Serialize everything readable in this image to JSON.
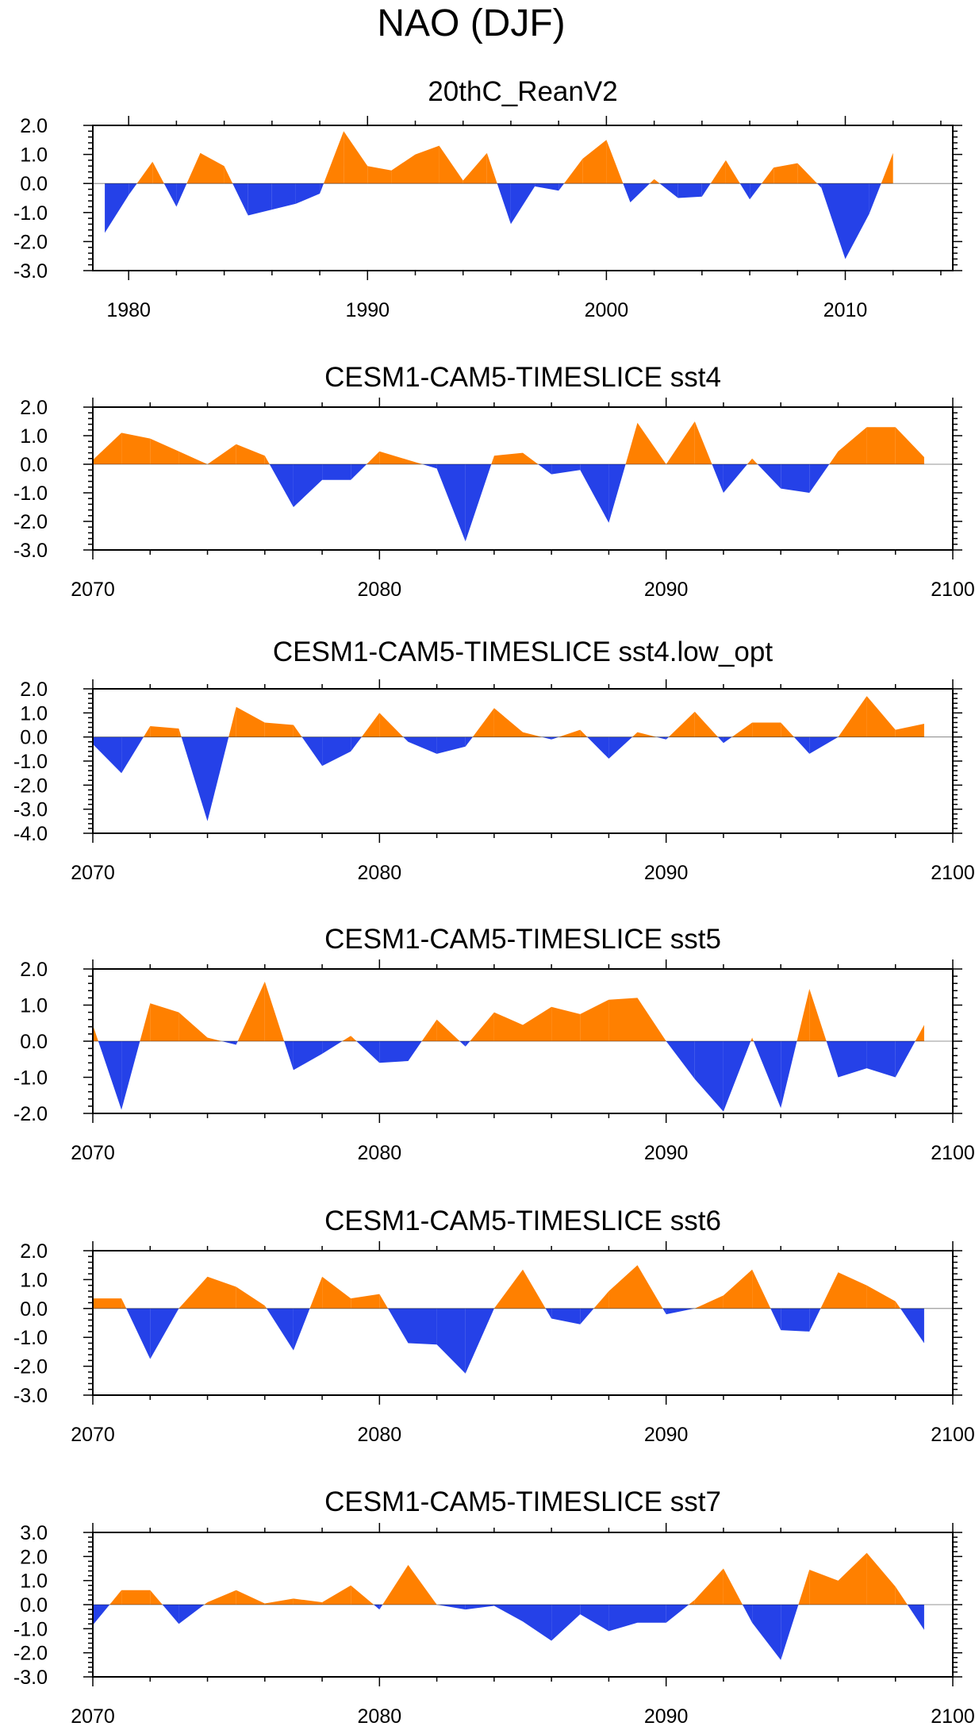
{
  "figure_title": "NAO (DJF)",
  "colors": {
    "positive": "#ff8000",
    "negative": "#2541e8"
  },
  "chart_data": [
    {
      "type": "area",
      "title": "20thC_ReanV2",
      "x": [
        1979,
        1980,
        1981,
        1982,
        1983,
        1984,
        1985,
        1986,
        1987,
        1988,
        1989,
        1990,
        1991,
        1992,
        1993,
        1994,
        1995,
        1996,
        1997,
        1998,
        1999,
        2000,
        2001,
        2002,
        2003,
        2004,
        2005,
        2006,
        2007,
        2008,
        2009,
        2010,
        2011,
        2012
      ],
      "values": [
        -1.7,
        -0.4,
        0.75,
        -0.8,
        1.05,
        0.6,
        -1.1,
        -0.9,
        -0.7,
        -0.35,
        1.8,
        0.6,
        0.45,
        1.0,
        1.3,
        0.1,
        1.05,
        -1.4,
        -0.1,
        -0.25,
        0.85,
        1.5,
        -0.65,
        0.15,
        -0.5,
        -0.45,
        0.8,
        -0.55,
        0.55,
        0.7,
        -0.15,
        -2.6,
        -1.05,
        1.05
      ],
      "xlim": [
        1978.5,
        2014.5
      ],
      "ylim": [
        -3.0,
        2.0
      ],
      "xticks": [
        1980,
        1990,
        2000,
        2010
      ],
      "xtick_labels": [
        "1980",
        "1990",
        "2000",
        "2010"
      ],
      "yticks": [
        2,
        1,
        0,
        -1,
        -2,
        -3
      ],
      "ytick_labels": [
        "2.0",
        "1.0",
        "0.0",
        "-1.0",
        "-2.0",
        "-3.0"
      ]
    },
    {
      "type": "area",
      "title": "CESM1-CAM5-TIMESLICE sst4",
      "x": [
        2070,
        2071,
        2072,
        2073,
        2074,
        2075,
        2076,
        2077,
        2078,
        2079,
        2080,
        2081,
        2082,
        2083,
        2084,
        2085,
        2086,
        2087,
        2088,
        2089,
        2090,
        2091,
        2092,
        2093,
        2094,
        2095,
        2096,
        2097,
        2098,
        2099
      ],
      "values": [
        0.15,
        1.1,
        0.9,
        0.45,
        0.0,
        0.7,
        0.3,
        -1.5,
        -0.55,
        -0.55,
        0.45,
        0.15,
        -0.15,
        -2.7,
        0.3,
        0.4,
        -0.35,
        -0.2,
        -2.05,
        1.45,
        0.0,
        1.5,
        -1.0,
        0.2,
        -0.85,
        -1.0,
        0.45,
        1.3,
        1.3,
        0.25
      ],
      "xlim": [
        2070,
        2100
      ],
      "ylim": [
        -3.0,
        2.0
      ],
      "xticks": [
        2070,
        2080,
        2090,
        2100
      ],
      "xtick_labels": [
        "2070",
        "2080",
        "2090",
        "2100"
      ],
      "yticks": [
        2,
        1,
        0,
        -1,
        -2,
        -3
      ],
      "ytick_labels": [
        "2.0",
        "1.0",
        "0.0",
        "-1.0",
        "-2.0",
        "-3.0"
      ]
    },
    {
      "type": "area",
      "title": "CESM1-CAM5-TIMESLICE sst4.low_opt",
      "x": [
        2070,
        2071,
        2072,
        2073,
        2074,
        2075,
        2076,
        2077,
        2078,
        2079,
        2080,
        2081,
        2082,
        2083,
        2084,
        2085,
        2086,
        2087,
        2088,
        2089,
        2090,
        2091,
        2092,
        2093,
        2094,
        2095,
        2096,
        2097,
        2098,
        2099
      ],
      "values": [
        -0.3,
        -1.5,
        0.45,
        0.35,
        -3.5,
        1.25,
        0.6,
        0.5,
        -1.2,
        -0.6,
        1.0,
        -0.2,
        -0.7,
        -0.4,
        1.2,
        0.2,
        -0.1,
        0.3,
        -0.9,
        0.2,
        -0.1,
        1.05,
        -0.25,
        0.6,
        0.6,
        -0.7,
        0.0,
        1.7,
        0.3,
        0.55
      ],
      "xlim": [
        2070,
        2100
      ],
      "ylim": [
        -4.0,
        2.0
      ],
      "xticks": [
        2070,
        2080,
        2090,
        2100
      ],
      "xtick_labels": [
        "2070",
        "2080",
        "2090",
        "2100"
      ],
      "yticks": [
        2,
        1,
        0,
        -1,
        -2,
        -3,
        -4
      ],
      "ytick_labels": [
        "2.0",
        "1.0",
        "0.0",
        "-1.0",
        "-2.0",
        "-3.0",
        "-4.0"
      ]
    },
    {
      "type": "area",
      "title": "CESM1-CAM5-TIMESLICE sst5",
      "x": [
        2070,
        2071,
        2072,
        2073,
        2074,
        2075,
        2076,
        2077,
        2078,
        2079,
        2080,
        2081,
        2082,
        2083,
        2084,
        2085,
        2086,
        2087,
        2088,
        2089,
        2090,
        2091,
        2092,
        2093,
        2094,
        2095,
        2096,
        2097,
        2098,
        2099
      ],
      "values": [
        0.45,
        -1.9,
        1.05,
        0.8,
        0.1,
        -0.1,
        1.65,
        -0.8,
        -0.35,
        0.15,
        -0.6,
        -0.55,
        0.6,
        -0.15,
        0.8,
        0.45,
        0.95,
        0.75,
        1.15,
        1.2,
        0.0,
        -1.05,
        -1.95,
        0.1,
        -1.85,
        1.45,
        -1.0,
        -0.75,
        -1.0,
        0.45
      ],
      "xlim": [
        2070,
        2100
      ],
      "ylim": [
        -2.0,
        2.0
      ],
      "xticks": [
        2070,
        2080,
        2090,
        2100
      ],
      "xtick_labels": [
        "2070",
        "2080",
        "2090",
        "2100"
      ],
      "yticks": [
        2,
        1,
        0,
        -1,
        -2
      ],
      "ytick_labels": [
        "2.0",
        "1.0",
        "0.0",
        "-1.0",
        "-2.0"
      ]
    },
    {
      "type": "area",
      "title": "CESM1-CAM5-TIMESLICE sst6",
      "x": [
        2070,
        2071,
        2072,
        2073,
        2074,
        2075,
        2076,
        2077,
        2078,
        2079,
        2080,
        2081,
        2082,
        2083,
        2084,
        2085,
        2086,
        2087,
        2088,
        2089,
        2090,
        2091,
        2092,
        2093,
        2094,
        2095,
        2096,
        2097,
        2098,
        2099
      ],
      "values": [
        0.35,
        0.35,
        -1.75,
        0.0,
        1.1,
        0.75,
        0.1,
        -1.45,
        1.1,
        0.35,
        0.5,
        -1.2,
        -1.25,
        -2.25,
        0.0,
        1.35,
        -0.35,
        -0.55,
        0.6,
        1.5,
        -0.2,
        0.0,
        0.45,
        1.35,
        -0.75,
        -0.8,
        1.25,
        0.8,
        0.25,
        -1.2
      ],
      "xlim": [
        2070,
        2100
      ],
      "ylim": [
        -3.0,
        2.0
      ],
      "xticks": [
        2070,
        2080,
        2090,
        2100
      ],
      "xtick_labels": [
        "2070",
        "2080",
        "2090",
        "2100"
      ],
      "yticks": [
        2,
        1,
        0,
        -1,
        -2,
        -3
      ],
      "ytick_labels": [
        "2.0",
        "1.0",
        "0.0",
        "-1.0",
        "-2.0",
        "-3.0"
      ]
    },
    {
      "type": "area",
      "title": "CESM1-CAM5-TIMESLICE sst7",
      "x": [
        2070,
        2071,
        2072,
        2073,
        2074,
        2075,
        2076,
        2077,
        2078,
        2079,
        2080,
        2081,
        2082,
        2083,
        2084,
        2085,
        2086,
        2087,
        2088,
        2089,
        2090,
        2091,
        2092,
        2093,
        2094,
        2095,
        2096,
        2097,
        2098,
        2099
      ],
      "values": [
        -0.85,
        0.6,
        0.6,
        -0.8,
        0.1,
        0.6,
        0.05,
        0.25,
        0.1,
        0.8,
        -0.2,
        1.65,
        0.0,
        -0.2,
        -0.05,
        -0.7,
        -1.5,
        -0.4,
        -1.1,
        -0.75,
        -0.75,
        0.2,
        1.5,
        -0.75,
        -2.3,
        1.45,
        1.0,
        2.15,
        0.75,
        -1.05
      ],
      "xlim": [
        2070,
        2100
      ],
      "ylim": [
        -3.0,
        3.0
      ],
      "xticks": [
        2070,
        2080,
        2090,
        2100
      ],
      "xtick_labels": [
        "2070",
        "2080",
        "2090",
        "2100"
      ],
      "yticks": [
        3,
        2,
        1,
        0,
        -1,
        -2,
        -3
      ],
      "ytick_labels": [
        "3.0",
        "2.0",
        "1.0",
        "0.0",
        "-1.0",
        "-2.0",
        "-3.0"
      ]
    }
  ]
}
